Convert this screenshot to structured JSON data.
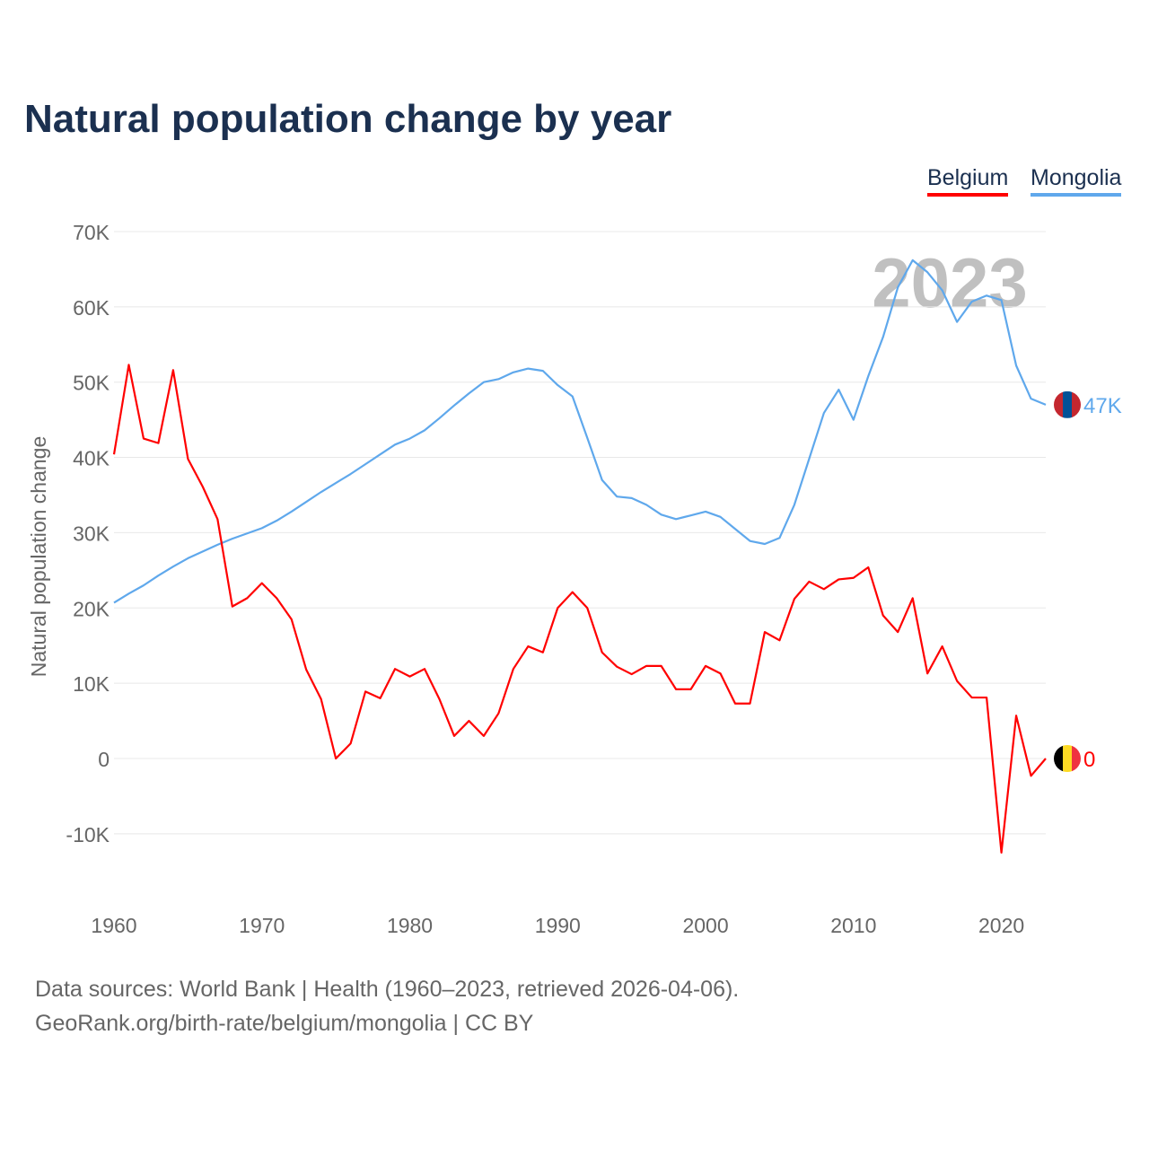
{
  "title": "Natural population change by year",
  "footer": {
    "line1": "Data sources: World Bank | Health (1960–2023, retrieved 2026-04-06).",
    "line2": "GeoRank.org/birth-rate/belgium/mongolia | CC BY"
  },
  "chart_data": {
    "type": "line",
    "title": "Natural population change by year",
    "xlabel": "",
    "ylabel": "Natural population change",
    "xlim": [
      1960,
      2023
    ],
    "ylim": [
      -15000,
      70000
    ],
    "yticks": [
      -10000,
      0,
      10000,
      20000,
      30000,
      40000,
      50000,
      60000,
      70000
    ],
    "ytick_labels": [
      "-10K",
      "0",
      "10K",
      "20K",
      "30K",
      "40K",
      "50K",
      "60K",
      "70K"
    ],
    "xticks": [
      1960,
      1970,
      1980,
      1990,
      2000,
      2010,
      2020
    ],
    "xtick_labels": [
      "1960",
      "1970",
      "1980",
      "1990",
      "2000",
      "2010",
      "2020"
    ],
    "grid": true,
    "legend_position": "top-right",
    "year_watermark": "2023",
    "series": [
      {
        "name": "Belgium",
        "color": "#ff0000",
        "end_label": "0",
        "flag": [
          "#000000",
          "#fdda24",
          "#ef3340"
        ],
        "values": [
          40400,
          52300,
          42500,
          41900,
          51600,
          39800,
          36100,
          31800,
          20200,
          21300,
          23300,
          21300,
          18500,
          11800,
          7900,
          0,
          2000,
          8900,
          8000,
          11900,
          10900,
          11900,
          7900,
          3000,
          5000,
          3000,
          6000,
          11900,
          14900,
          14100,
          20000,
          22100,
          20000,
          14100,
          12200,
          11200,
          12300,
          12300,
          9200,
          9200,
          12300,
          11300,
          7300,
          7300,
          16800,
          15700,
          21200,
          23500,
          22500,
          23800,
          24000,
          25400,
          19000,
          16800,
          21300,
          11300,
          14900,
          10300,
          8100,
          8100,
          -12500,
          5700,
          -2300,
          0
        ]
      },
      {
        "name": "Mongolia",
        "color": "#5fa8ec",
        "end_label": "47K",
        "flag": [
          "#c4272f",
          "#015197",
          "#c4272f"
        ],
        "values": [
          20700,
          21900,
          23000,
          24300,
          25500,
          26600,
          27500,
          28400,
          29200,
          29900,
          30600,
          31600,
          32800,
          34100,
          35400,
          36600,
          37800,
          39100,
          40400,
          41700,
          42500,
          43600,
          45200,
          46900,
          48500,
          50000,
          50400,
          51300,
          51800,
          51500,
          49600,
          48100,
          42600,
          37000,
          34800,
          34600,
          33700,
          32400,
          31800,
          32300,
          32800,
          32100,
          30500,
          28900,
          28500,
          29300,
          33700,
          39800,
          45900,
          49000,
          45000,
          50800,
          56000,
          62600,
          66200,
          64600,
          62200,
          58000,
          60700,
          61500,
          60900,
          52200,
          47800,
          47000
        ]
      }
    ]
  }
}
